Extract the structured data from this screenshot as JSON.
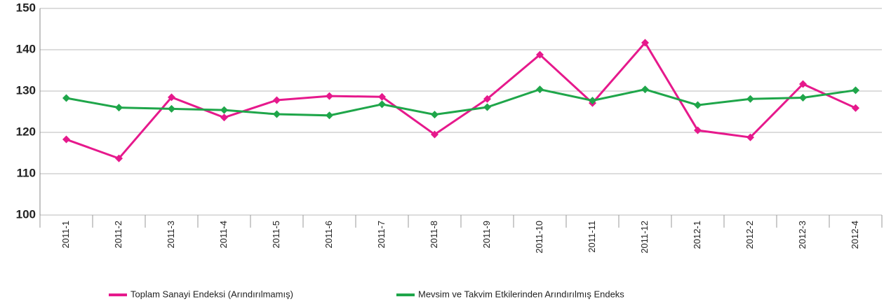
{
  "chart_data": {
    "type": "line",
    "categories": [
      "2011-1",
      "2011-2",
      "2011-3",
      "2011-4",
      "2011-5",
      "2011-6",
      "2011-7",
      "2011-8",
      "2011-9",
      "2011-10",
      "2011-11",
      "2011-12",
      "2012-1",
      "2012-2",
      "2012-3",
      "2012-4"
    ],
    "series": [
      {
        "name": "Toplam Sanayi Endeksi (Arındırılmamış)",
        "color": "#e6198c",
        "values": [
          118.3,
          113.7,
          128.5,
          123.6,
          127.8,
          128.8,
          128.6,
          119.5,
          128.1,
          138.8,
          127.1,
          141.7,
          120.5,
          118.8,
          131.7,
          125.9
        ]
      },
      {
        "name": "Mevsim ve Takvim Etkilerinden Arındırılmış  Endeks",
        "color": "#1fa64a",
        "values": [
          128.3,
          126.0,
          125.7,
          125.4,
          124.4,
          124.1,
          126.8,
          124.3,
          126.1,
          130.4,
          127.7,
          130.4,
          126.6,
          128.1,
          128.4,
          130.2
        ]
      }
    ],
    "ylim": [
      100,
      150
    ],
    "yticks": [
      100,
      110,
      120,
      130,
      140,
      150
    ],
    "grid": true,
    "legend": "bottom"
  }
}
